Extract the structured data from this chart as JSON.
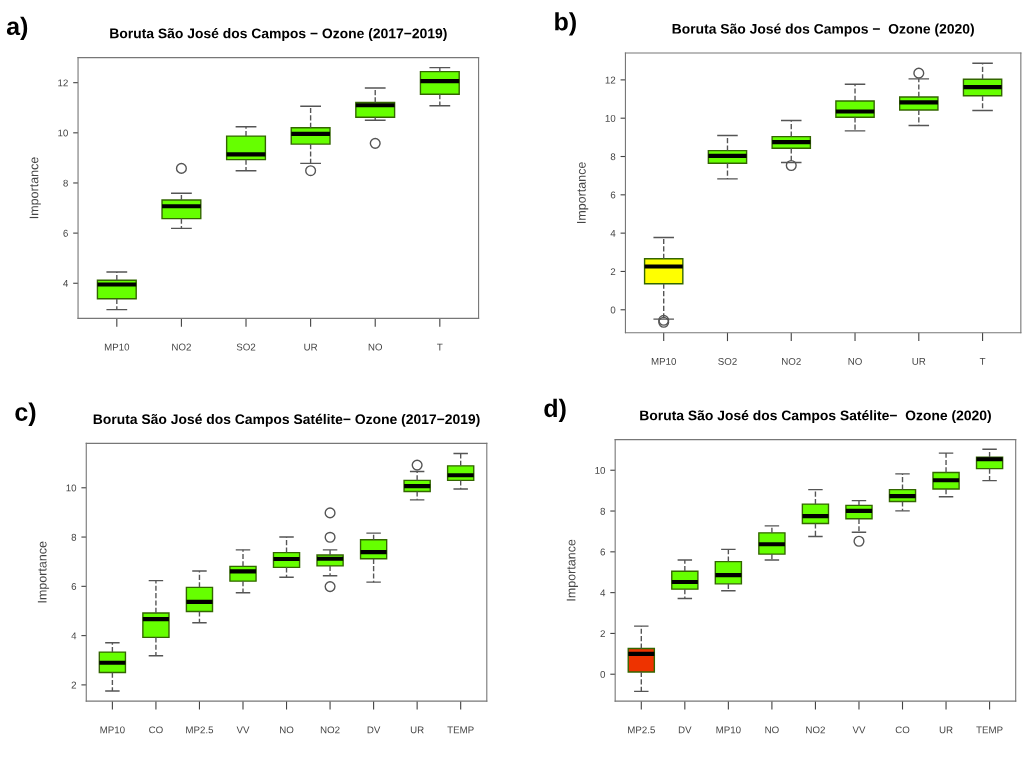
{
  "chart_data": [
    {
      "type": "box",
      "title": "Boruta São José dos Campos − Ozone (2017−2019)",
      "ylabel": "Importance",
      "annotations": [
        "a)"
      ],
      "categories": [
        "MP10",
        "NO2",
        "SO2",
        "UR",
        "NO",
        "T"
      ],
      "colors": [
        "#66ff00",
        "#66ff00",
        "#66ff00",
        "#66ff00",
        "#66ff00",
        "#66ff00"
      ],
      "boxes": [
        {
          "low": 2.95,
          "q1": 3.38,
          "median": 3.95,
          "q3": 4.12,
          "high": 4.45
        },
        {
          "low": 6.19,
          "q1": 6.58,
          "median": 7.07,
          "q3": 7.32,
          "high": 7.59,
          "outliers": [
            8.58
          ]
        },
        {
          "low": 8.49,
          "q1": 8.93,
          "median": 9.14,
          "q3": 9.87,
          "high": 10.24
        },
        {
          "low": 8.78,
          "q1": 9.55,
          "median": 9.96,
          "q3": 10.2,
          "high": 11.06,
          "outliers": [
            8.49
          ]
        },
        {
          "low": 10.5,
          "q1": 10.62,
          "median": 11.1,
          "q3": 11.21,
          "high": 11.79,
          "outliers": [
            9.58
          ]
        },
        {
          "low": 11.08,
          "q1": 11.54,
          "median": 12.06,
          "q3": 12.44,
          "high": 12.6
        }
      ],
      "ylim": [
        2.6,
        13
      ],
      "yticks": [
        4,
        6,
        8,
        10,
        12
      ],
      "grid": false,
      "line_style": "dashed"
    },
    {
      "type": "box",
      "title": "Boruta São José dos Campos −  Ozone (2020)",
      "ylabel": "Importance",
      "annotations": [
        "b)"
      ],
      "categories": [
        "MP10",
        "SO2",
        "NO2",
        "NO",
        "UR",
        "T"
      ],
      "colors": [
        "#ffff00",
        "#66ff00",
        "#66ff00",
        "#66ff00",
        "#66ff00",
        "#66ff00"
      ],
      "boxes": [
        {
          "low": -0.49,
          "q1": 1.36,
          "median": 2.26,
          "q3": 2.66,
          "high": 3.77,
          "outliers": [
            -0.55,
            -0.65
          ]
        },
        {
          "low": 6.83,
          "q1": 7.65,
          "median": 8.03,
          "q3": 8.31,
          "high": 9.1
        },
        {
          "low": 7.69,
          "q1": 8.43,
          "median": 8.75,
          "q3": 9.04,
          "high": 9.88,
          "outliers": [
            7.53
          ]
        },
        {
          "low": 9.34,
          "q1": 10.05,
          "median": 10.35,
          "q3": 10.9,
          "high": 11.77
        },
        {
          "low": 9.62,
          "q1": 10.43,
          "median": 10.83,
          "q3": 11.11,
          "high": 12.05,
          "outliers": [
            12.35
          ]
        },
        {
          "low": 10.4,
          "q1": 11.17,
          "median": 11.62,
          "q3": 12.03,
          "high": 12.87
        }
      ],
      "ylim": [
        -1.2,
        13.4
      ],
      "yticks": [
        0,
        2,
        4,
        6,
        8,
        10,
        12
      ],
      "grid": false,
      "line_style": "dashed"
    },
    {
      "type": "box",
      "title": "Boruta São José dos Campos Satélite− Ozone (2017−2019)",
      "ylabel": "Importance",
      "annotations": [
        "c)"
      ],
      "categories": [
        "MP10",
        "CO",
        "MP2.5",
        "VV",
        "NO",
        "NO2",
        "DV",
        "UR",
        "TEMP"
      ],
      "colors": [
        "#66ff00",
        "#66ff00",
        "#66ff00",
        "#66ff00",
        "#66ff00",
        "#66ff00",
        "#66ff00",
        "#66ff00",
        "#66ff00"
      ],
      "boxes": [
        {
          "low": 1.75,
          "q1": 2.5,
          "median": 2.9,
          "q3": 3.33,
          "high": 3.71
        },
        {
          "low": 3.18,
          "q1": 3.93,
          "median": 4.67,
          "q3": 4.92,
          "high": 6.23
        },
        {
          "low": 4.52,
          "q1": 4.98,
          "median": 5.37,
          "q3": 5.96,
          "high": 6.62
        },
        {
          "low": 5.74,
          "q1": 6.21,
          "median": 6.61,
          "q3": 6.81,
          "high": 7.48
        },
        {
          "low": 6.37,
          "q1": 6.77,
          "median": 7.11,
          "q3": 7.37,
          "high": 8.0
        },
        {
          "low": 6.43,
          "q1": 6.83,
          "median": 7.12,
          "q3": 7.27,
          "high": 7.48,
          "outliers": [
            8.98,
            7.99,
            5.99
          ]
        },
        {
          "low": 6.17,
          "q1": 7.12,
          "median": 7.39,
          "q3": 7.89,
          "high": 8.16
        },
        {
          "low": 9.51,
          "q1": 9.85,
          "median": 10.07,
          "q3": 10.3,
          "high": 10.66,
          "outliers": [
            10.92
          ]
        },
        {
          "low": 9.95,
          "q1": 10.3,
          "median": 10.51,
          "q3": 10.89,
          "high": 11.39
        }
      ],
      "ylim": [
        1.34,
        11.8
      ],
      "yticks": [
        2,
        4,
        6,
        8,
        10
      ],
      "grid": false,
      "line_style": "dashed"
    },
    {
      "type": "box",
      "title": "Boruta São José dos Campos Satélite−  Ozone (2020)",
      "ylabel": "Importance",
      "annotations": [
        "d)"
      ],
      "categories": [
        "MP2.5",
        "DV",
        "MP10",
        "NO",
        "NO2",
        "VV",
        "CO",
        "UR",
        "TEMP"
      ],
      "colors": [
        "#ee3300",
        "#66ff00",
        "#66ff00",
        "#66ff00",
        "#66ff00",
        "#66ff00",
        "#66ff00",
        "#66ff00",
        "#66ff00"
      ],
      "boxes": [
        {
          "low": -0.84,
          "q1": 0.11,
          "median": 1.0,
          "q3": 1.26,
          "high": 2.36
        },
        {
          "low": 3.71,
          "q1": 4.17,
          "median": 4.52,
          "q3": 5.05,
          "high": 5.6
        },
        {
          "low": 4.09,
          "q1": 4.43,
          "median": 4.86,
          "q3": 5.52,
          "high": 6.12
        },
        {
          "low": 5.6,
          "q1": 5.89,
          "median": 6.37,
          "q3": 6.93,
          "high": 7.27
        },
        {
          "low": 6.75,
          "q1": 7.39,
          "median": 7.75,
          "q3": 8.34,
          "high": 9.05
        },
        {
          "low": 6.96,
          "q1": 7.62,
          "median": 8.01,
          "q3": 8.28,
          "high": 8.51,
          "outliers": [
            6.52
          ]
        },
        {
          "low": 8.01,
          "q1": 8.47,
          "median": 8.73,
          "q3": 9.05,
          "high": 9.82
        },
        {
          "low": 8.7,
          "q1": 9.08,
          "median": 9.51,
          "q3": 9.89,
          "high": 10.84
        },
        {
          "low": 9.49,
          "q1": 10.08,
          "median": 10.54,
          "q3": 10.64,
          "high": 11.03
        }
      ],
      "ylim": [
        -1.32,
        11.5
      ],
      "yticks": [
        0,
        2,
        4,
        6,
        8,
        10
      ],
      "grid": false,
      "line_style": "dashed"
    }
  ]
}
